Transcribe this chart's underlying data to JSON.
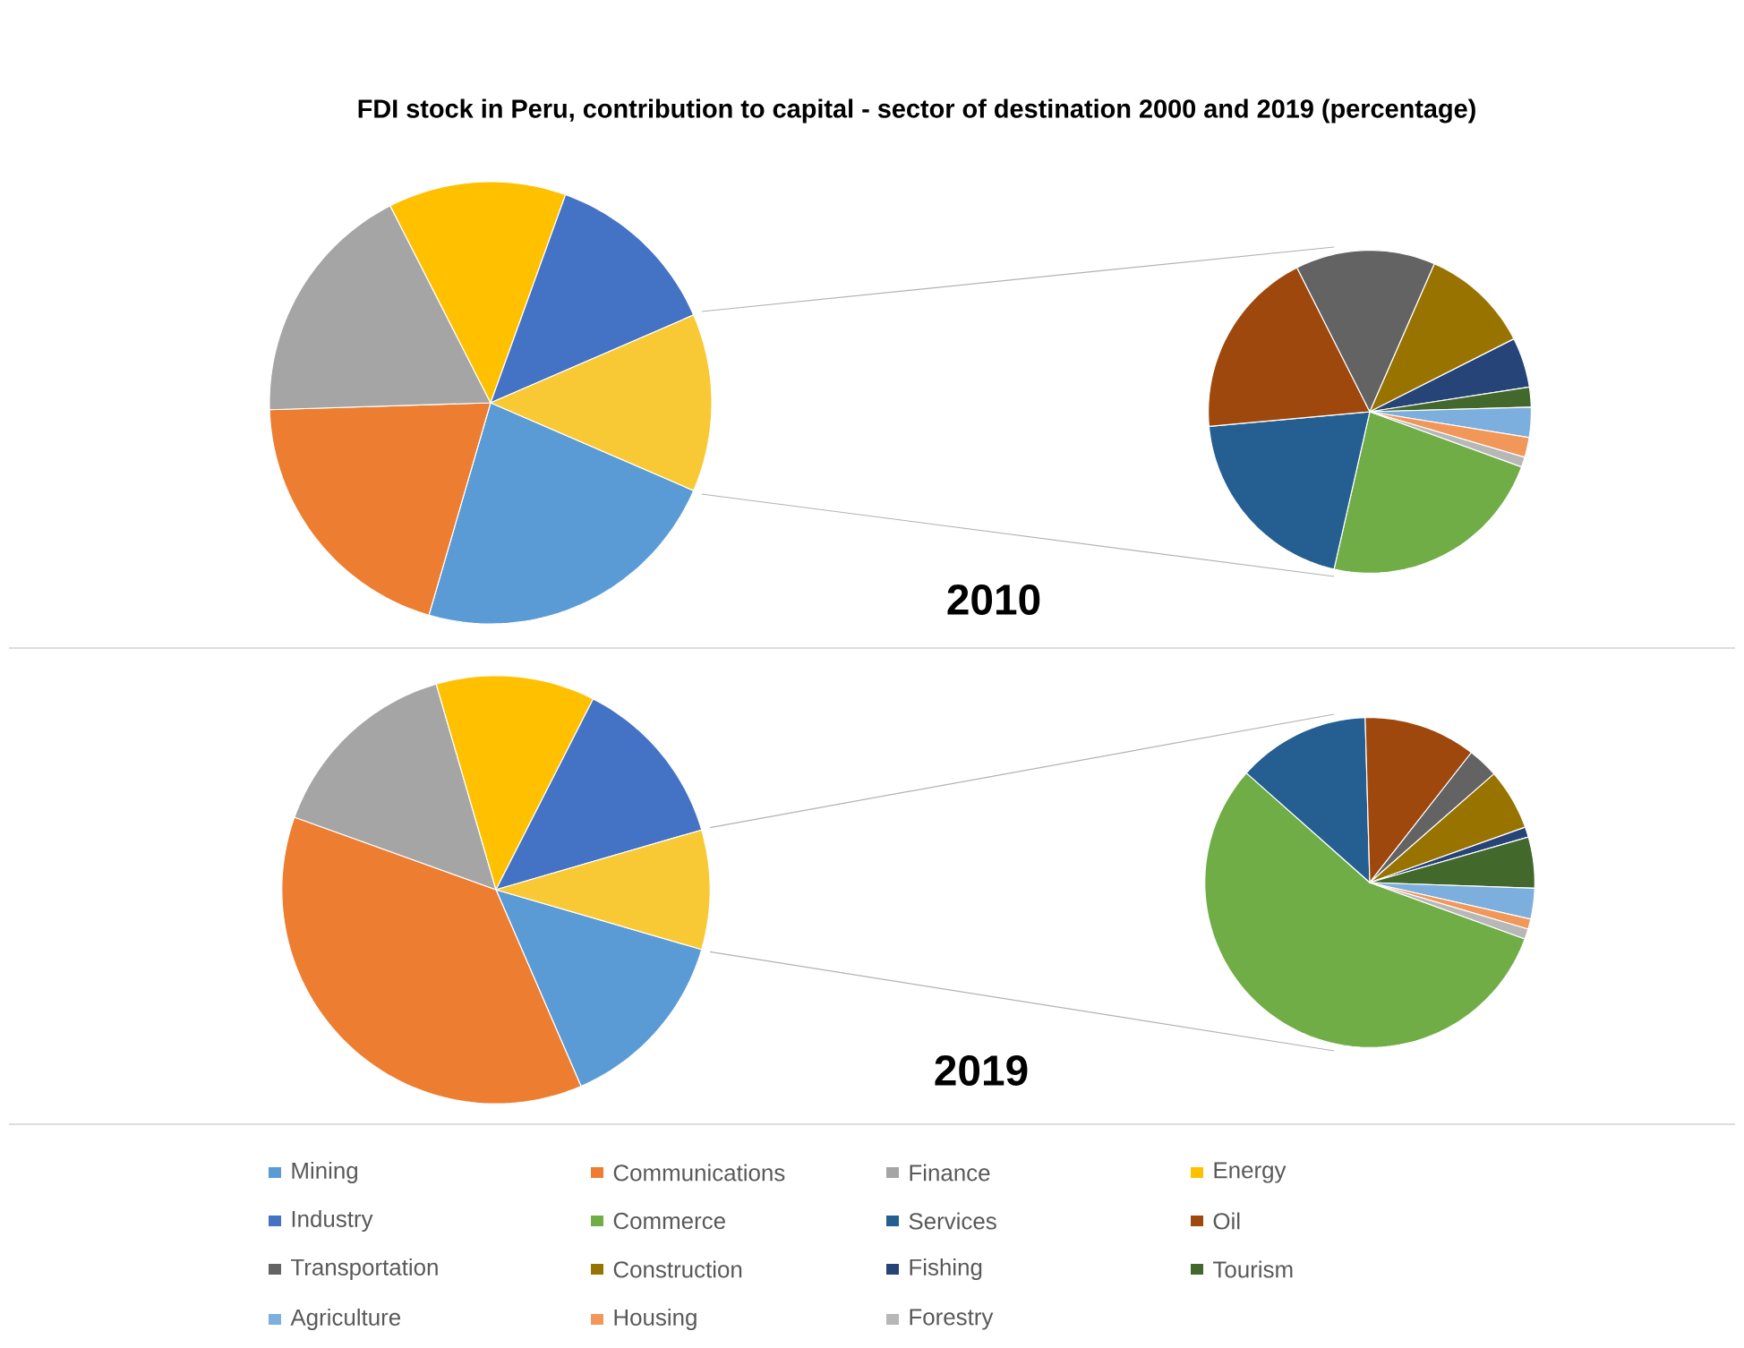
{
  "chart_data": [
    {
      "type": "pie",
      "title": "FDI stock in Peru, contribution  to capital - sector of destination 2000 and 2019 (percentage)",
      "subtitle": "2010",
      "legend": "bottom",
      "categories": [
        "Mining",
        "Communications",
        "Finance",
        "Energy",
        "Industry",
        null
      ],
      "values": [
        23,
        20,
        18,
        13,
        13,
        13
      ],
      "colors": [
        "#5b9bd5",
        "#ed7d31",
        "#a5a5a5",
        "#ffc000",
        "#4472c4",
        "#f9c935"
      ]
    },
    {
      "type": "pie",
      "legend": "bottom",
      "categories": [
        "Commerce",
        "Services",
        "Oil",
        "Transportation",
        "Construction",
        "Fishing",
        "Tourism",
        "Agriculture",
        "Housing",
        "Forestry"
      ],
      "values": [
        23,
        20,
        19,
        14,
        11,
        5,
        2,
        3,
        2,
        1
      ],
      "colors": [
        "#70ad47",
        "#255e91",
        "#9e480e",
        "#636363",
        "#997300",
        "#264478",
        "#43682b",
        "#7cafdd",
        "#f1975a",
        "#b7b7b7"
      ]
    },
    {
      "type": "pie",
      "subtitle": "2019",
      "categories": [
        null,
        null,
        null,
        null,
        null,
        null
      ],
      "values": [
        14,
        37,
        15,
        12,
        13,
        9
      ],
      "colors": [
        "#5b9bd5",
        "#ed7d31",
        "#a5a5a5",
        "#ffc000",
        "#4472c4",
        "#f9c935"
      ]
    },
    {
      "type": "pie",
      "categories": [
        null,
        null,
        null,
        null,
        null,
        null,
        null,
        null,
        null,
        null
      ],
      "values": [
        56,
        13,
        11,
        3,
        6,
        1,
        5,
        3,
        1,
        1
      ],
      "colors": [
        "#70ad47",
        "#255e91",
        "#9e480e",
        "#636363",
        "#997300",
        "#264478",
        "#43682b",
        "#7cafdd",
        "#f1975a",
        "#b7b7b7"
      ]
    }
  ]
}
